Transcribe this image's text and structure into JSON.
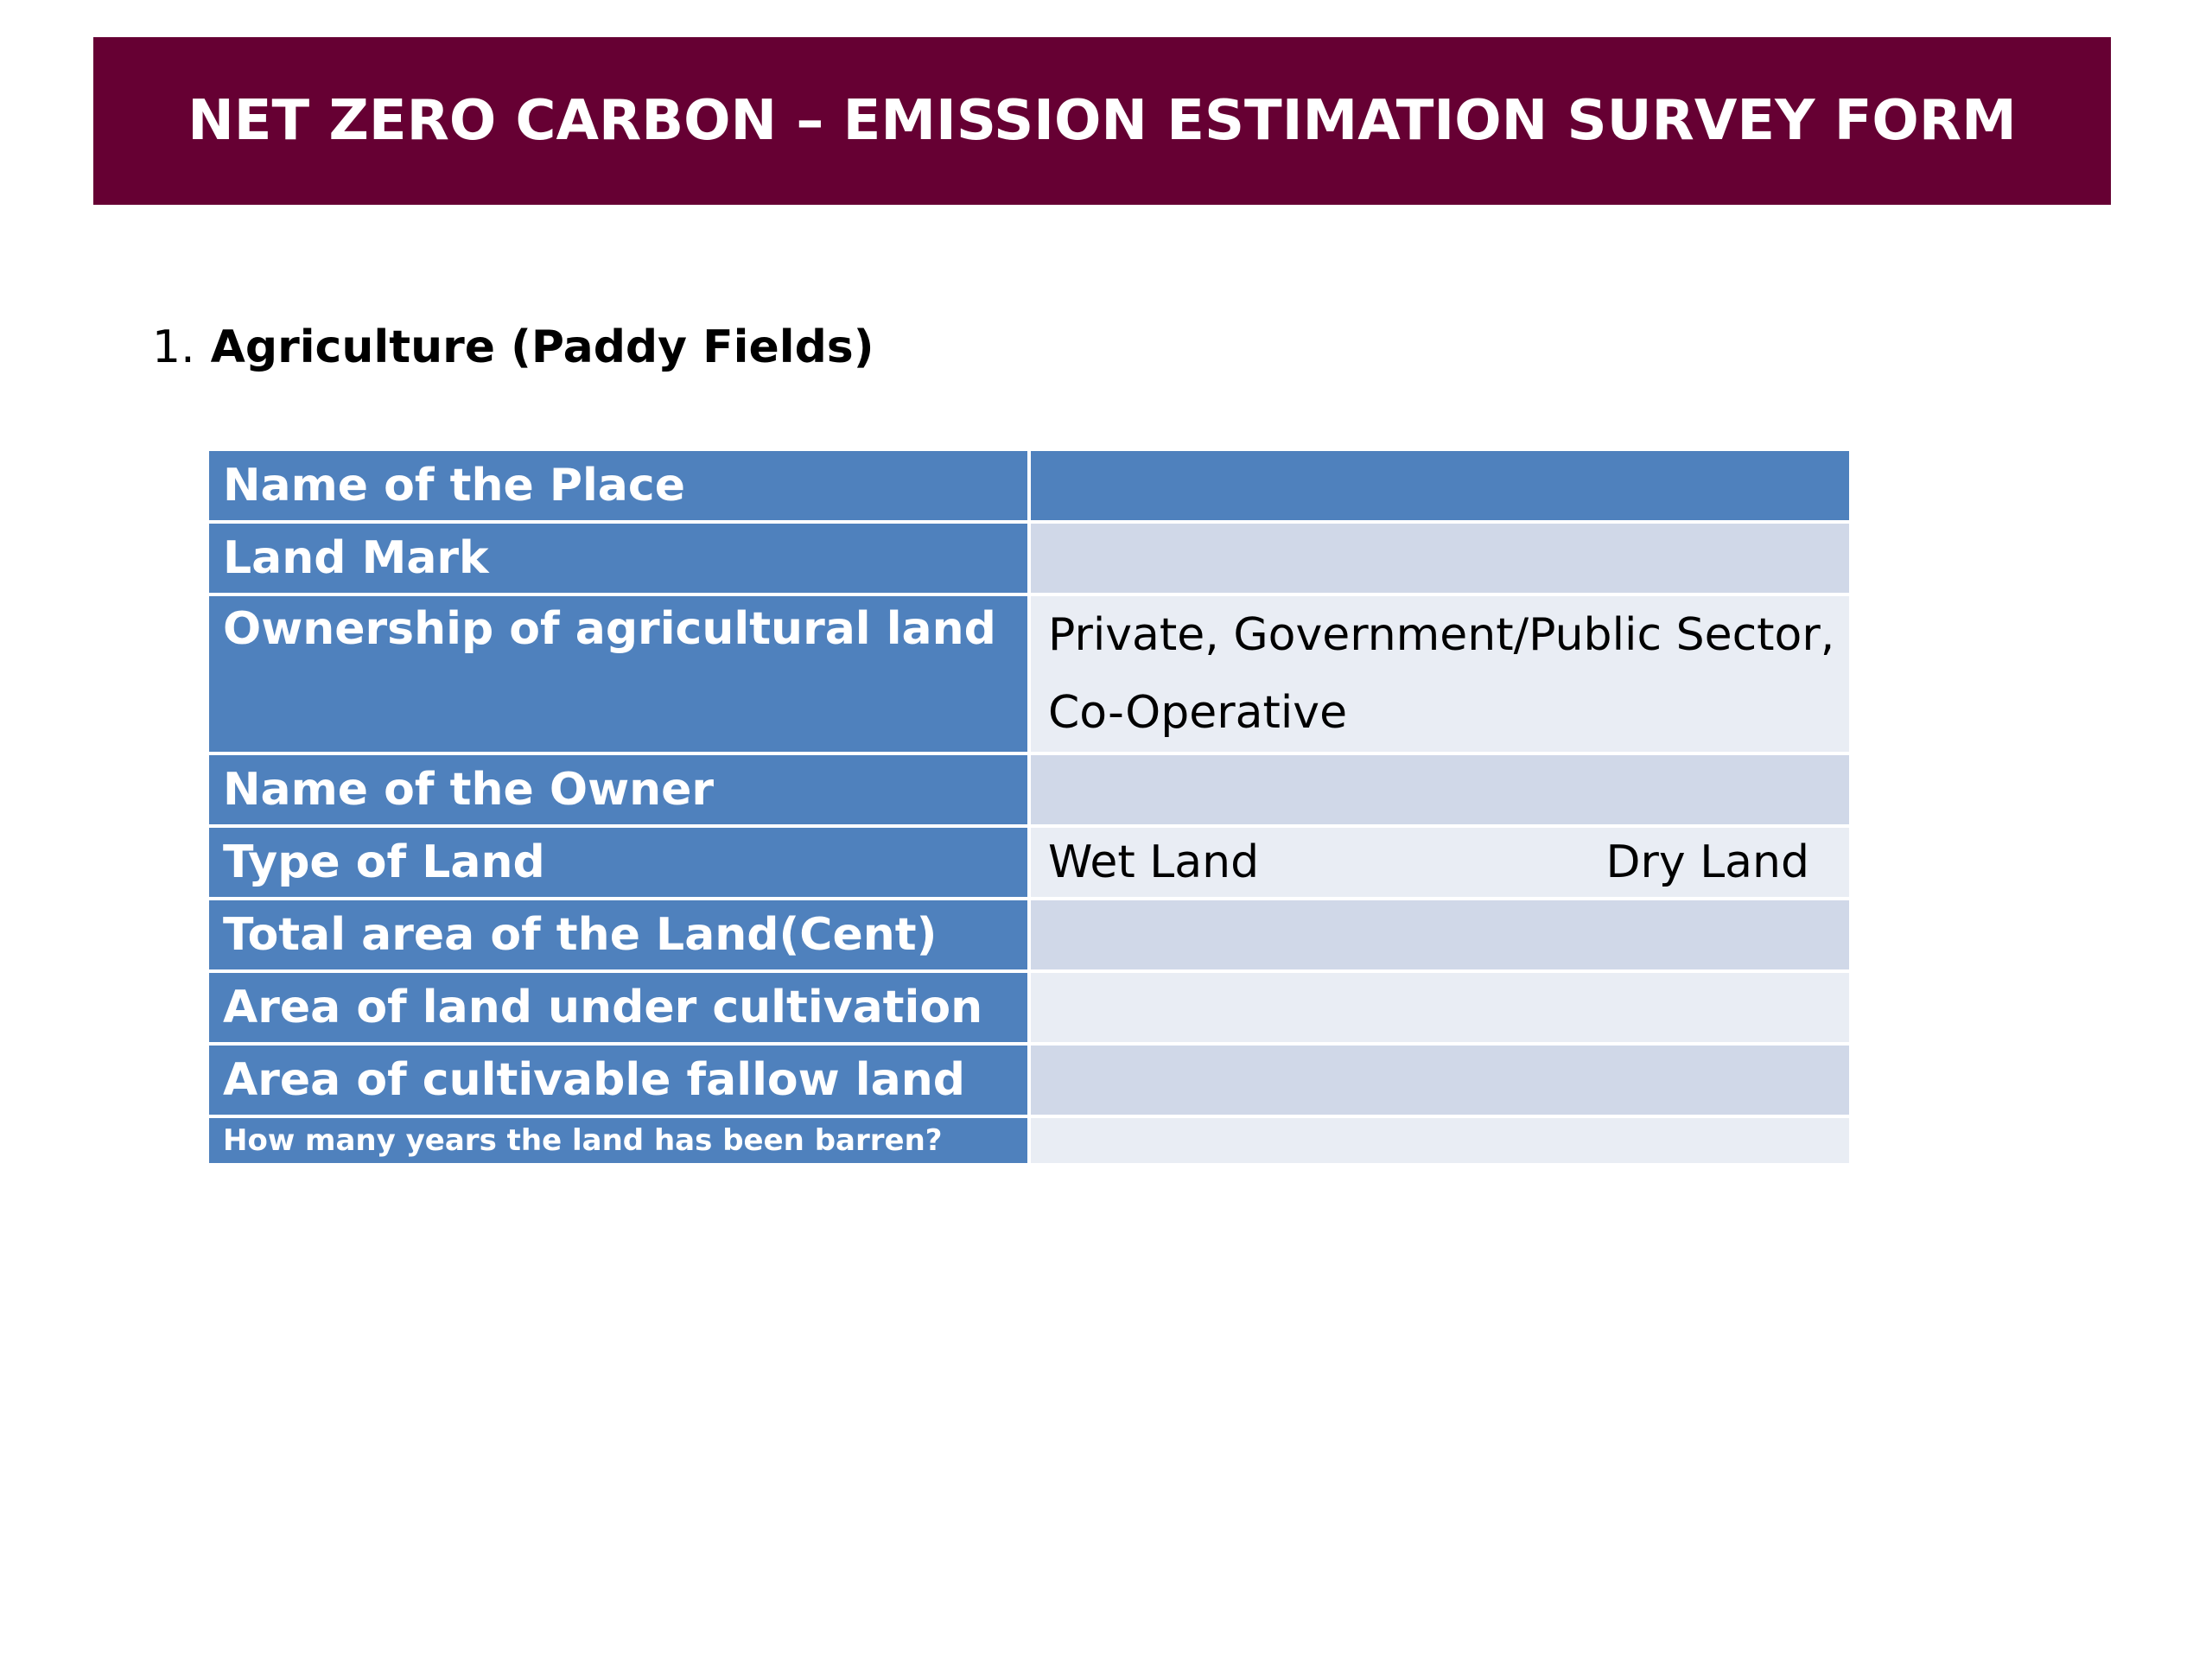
{
  "title": "NET ZERO CARBON – EMISSION ESTIMATION SURVEY FORM",
  "section": {
    "number": "1.",
    "name": "Agriculture (Paddy Fields)"
  },
  "form": {
    "rows": [
      {
        "label": "Name of the Place",
        "value": ""
      },
      {
        "label": "Land Mark",
        "value": ""
      },
      {
        "label": "Ownership of agricultural land",
        "value": "Private, Government/Public Sector, Co-Operative"
      },
      {
        "label": "Name of the Owner",
        "value": ""
      },
      {
        "label": "Type of Land",
        "options": [
          "Wet Land",
          "Dry Land"
        ]
      },
      {
        "label": "Total area of the Land(Cent)",
        "value": ""
      },
      {
        "label": "Area of land under cultivation",
        "value": ""
      },
      {
        "label": "Area of cultivable fallow land",
        "value": ""
      },
      {
        "label": "How many years the land has been barren?",
        "value": ""
      }
    ]
  },
  "colors": {
    "banner": "#660033",
    "label_cell": "#4f81bd",
    "value_band_a": "#d0d8e8",
    "value_band_b": "#e9edf4"
  }
}
